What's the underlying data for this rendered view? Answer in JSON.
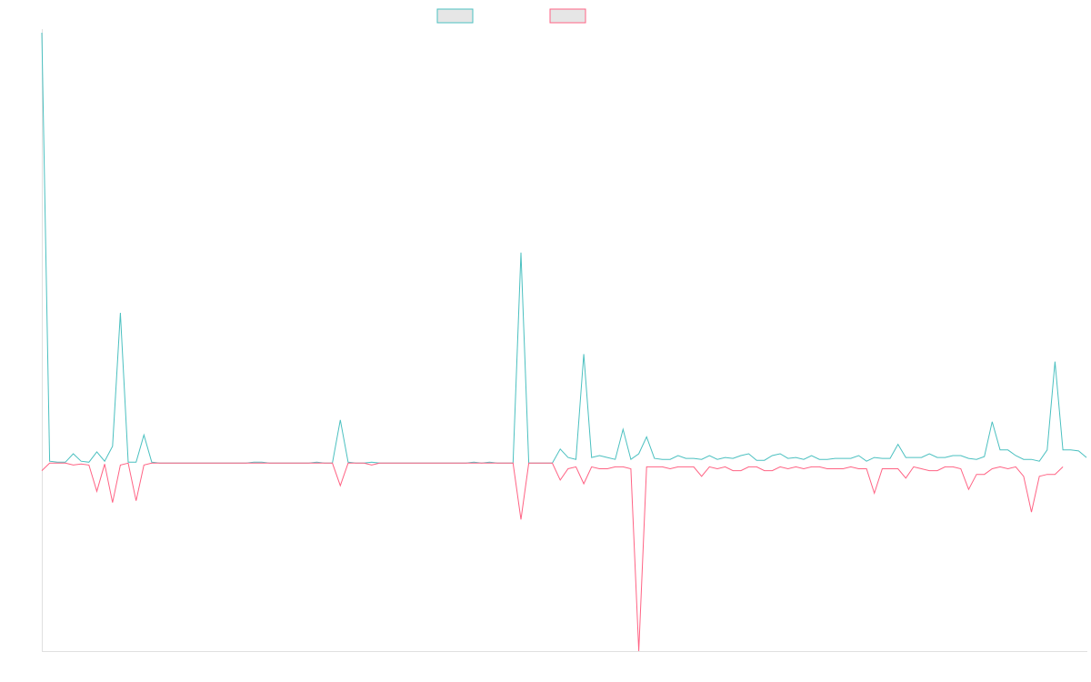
{
  "colors": {
    "series_a": "#4bc0c0",
    "series_b": "#ff6384",
    "legend_fill": "#e6e6e6",
    "axis": "#e0e0e0",
    "background": "#ffffff"
  },
  "chart_data": {
    "type": "line",
    "title": "",
    "xlabel": "",
    "ylabel": "",
    "grid": false,
    "legend_position": "top",
    "x_count": 134,
    "ylim": [
      -100,
      229
    ],
    "series": [
      {
        "label": "",
        "color": "#4bc0c0",
        "values": [
          229,
          1,
          0.5,
          0.5,
          5,
          1,
          0.5,
          6,
          1,
          9,
          80,
          0.5,
          0.5,
          15,
          0.5,
          0,
          0,
          0,
          0,
          0,
          0,
          0,
          0,
          0,
          0,
          0,
          0,
          0.5,
          0.5,
          0,
          0,
          0,
          0,
          0,
          0,
          0.5,
          0,
          0,
          23,
          0.5,
          0,
          0,
          0.5,
          0,
          0,
          0,
          0,
          0,
          0,
          0,
          0,
          0,
          0,
          0,
          0,
          0.5,
          0,
          0.5,
          0,
          0,
          0,
          112,
          0,
          0,
          0,
          0,
          7.5,
          3,
          2,
          58,
          3,
          4,
          3,
          2,
          18,
          2,
          5,
          14,
          2.5,
          2,
          2,
          4,
          2.5,
          2.5,
          2,
          4,
          2,
          3,
          2.5,
          4,
          5,
          1.5,
          1.5,
          4,
          5,
          2.5,
          3,
          2,
          4,
          2,
          2,
          2.5,
          2.5,
          2.5,
          4,
          1,
          3,
          2.5,
          2.5,
          10,
          3,
          3,
          3,
          5,
          3,
          3,
          4,
          4,
          2.5,
          2,
          3.5,
          22,
          7,
          7,
          4,
          2,
          2,
          1,
          7,
          54,
          7,
          7,
          6.5,
          3
        ]
      },
      {
        "label": "",
        "color": "#ff6384",
        "values": [
          -4,
          0,
          0,
          0,
          -1,
          -0.5,
          -1,
          -15,
          -0.5,
          -21,
          -1,
          0,
          -20,
          -1,
          0,
          0,
          0,
          0,
          0,
          0,
          0,
          0,
          0,
          0,
          0,
          0,
          0,
          0,
          0,
          0,
          0,
          0,
          0,
          0,
          0,
          0,
          0,
          0,
          -12,
          0,
          0,
          0,
          -1,
          0,
          0,
          0,
          0,
          0,
          0,
          0,
          0,
          0,
          0,
          0,
          0,
          0,
          0,
          0,
          0,
          0,
          0,
          -30,
          0,
          0,
          0,
          0,
          -9,
          -3,
          -2,
          -11,
          -2,
          -3,
          -3,
          -2,
          -2,
          -3,
          -100,
          -2,
          -2,
          -2,
          -3,
          -2,
          -2,
          -2,
          -7,
          -2,
          -3,
          -2,
          -4,
          -4,
          -2,
          -2,
          -4,
          -4,
          -2,
          -3,
          -2,
          -3,
          -2,
          -2,
          -3,
          -3,
          -3,
          -2,
          -3,
          -3,
          -16,
          -3,
          -3,
          -3,
          -8,
          -2,
          -3,
          -4,
          -4,
          -2,
          -2,
          -3,
          -14,
          -6,
          -6,
          -3,
          -2,
          -3,
          -2,
          -7,
          -26,
          -7,
          -6,
          -6,
          -2
        ]
      }
    ]
  }
}
